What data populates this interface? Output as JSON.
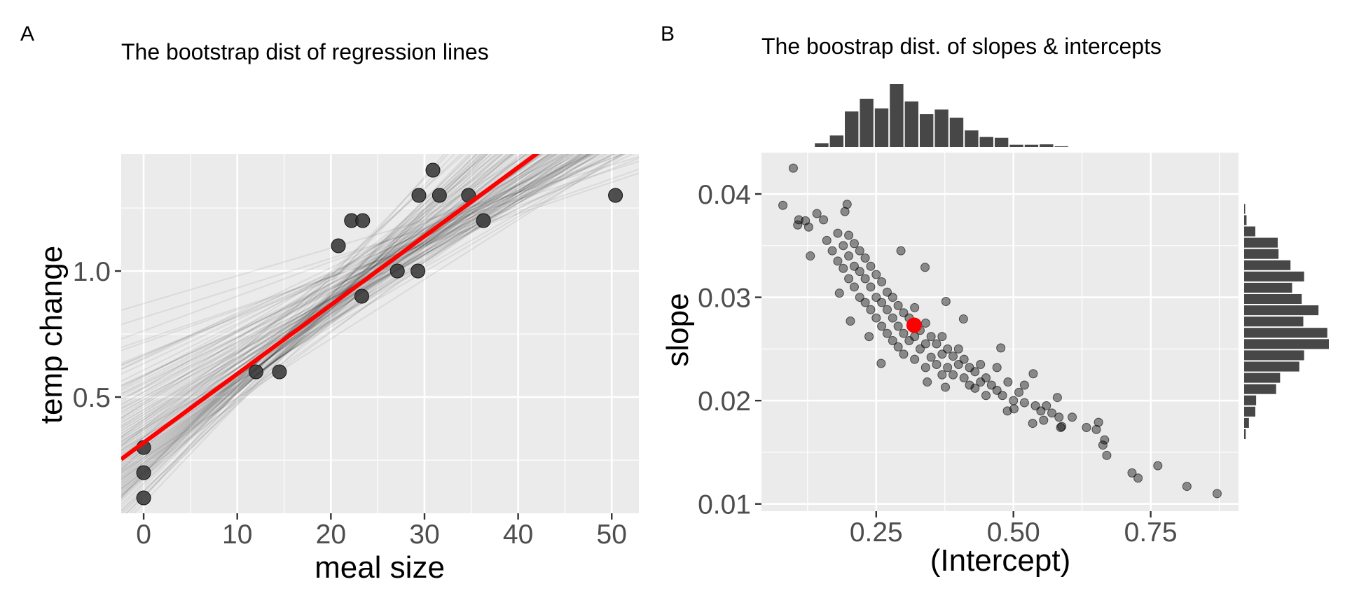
{
  "chart_data": [
    {
      "panel_tag": "A",
      "type": "scatter",
      "title": "The bootstrap dist of regression lines",
      "xlabel": "meal size",
      "ylabel": "temp change",
      "xlim": [
        -2.4,
        52.9
      ],
      "ylim": [
        0.039,
        1.464
      ],
      "xticks": [
        0,
        10,
        20,
        30,
        40,
        50
      ],
      "xtick_labels": [
        "0",
        "10",
        "20",
        "30",
        "40",
        "50"
      ],
      "yticks": [
        0.5,
        1.0
      ],
      "ytick_labels": [
        "0.5",
        "1.0"
      ],
      "grid": true,
      "points": [
        [
          0,
          0.3
        ],
        [
          0,
          0.2
        ],
        [
          0,
          0.1
        ],
        [
          12.0,
          0.6
        ],
        [
          14.5,
          0.6
        ],
        [
          20.8,
          1.1
        ],
        [
          22.2,
          1.2
        ],
        [
          23.4,
          1.2
        ],
        [
          23.3,
          0.9
        ],
        [
          27.1,
          1.0
        ],
        [
          29.3,
          1.0
        ],
        [
          29.4,
          1.3
        ],
        [
          30.9,
          1.4
        ],
        [
          31.6,
          1.3
        ],
        [
          34.7,
          1.3
        ],
        [
          36.3,
          1.2
        ],
        [
          50.4,
          1.3
        ]
      ],
      "point_color": "#333333",
      "fit_line": {
        "intercept": 0.319,
        "slope": 0.0273,
        "color": "#FF0000"
      },
      "bootstrap_lines_from": "panel B samples (intercept, slope)"
    },
    {
      "panel_tag": "B",
      "type": "scatter",
      "title": "The boostrap dist. of slopes & intercepts",
      "xlabel": "(Intercept)",
      "ylabel": "slope",
      "xlim": [
        0.041,
        0.91
      ],
      "ylim": [
        0.0093,
        0.044
      ],
      "xticks": [
        0.25,
        0.5,
        0.75
      ],
      "xtick_labels": [
        "0.25",
        "0.50",
        "0.75"
      ],
      "yticks": [
        0.01,
        0.02,
        0.03,
        0.04
      ],
      "ytick_labels": [
        "0.01",
        "0.02",
        "0.03",
        "0.04"
      ],
      "grid": true,
      "estimate": {
        "intercept": 0.319,
        "slope": 0.0273,
        "color": "#FF0000"
      },
      "samples": [
        [
          0.099,
          0.0425
        ],
        [
          0.08,
          0.0389
        ],
        [
          0.107,
          0.037
        ],
        [
          0.109,
          0.0375
        ],
        [
          0.121,
          0.0374
        ],
        [
          0.127,
          0.0368
        ],
        [
          0.142,
          0.0381
        ],
        [
          0.13,
          0.034
        ],
        [
          0.154,
          0.0375
        ],
        [
          0.197,
          0.039
        ],
        [
          0.193,
          0.0383
        ],
        [
          0.295,
          0.0345
        ],
        [
          0.339,
          0.0329
        ],
        [
          0.377,
          0.0296
        ],
        [
          0.409,
          0.0279
        ],
        [
          0.477,
          0.0251
        ],
        [
          0.536,
          0.0226
        ],
        [
          0.607,
          0.0184
        ],
        [
          0.633,
          0.0174
        ],
        [
          0.655,
          0.0179
        ],
        [
          0.651,
          0.0172
        ],
        [
          0.666,
          0.0162
        ],
        [
          0.663,
          0.0157
        ],
        [
          0.67,
          0.0147
        ],
        [
          0.716,
          0.013
        ],
        [
          0.727,
          0.0125
        ],
        [
          0.763,
          0.0137
        ],
        [
          0.816,
          0.0117
        ],
        [
          0.871,
          0.011
        ],
        [
          0.586,
          0.0174
        ],
        [
          0.588,
          0.0175
        ],
        [
          0.58,
          0.0203
        ],
        [
          0.535,
          0.0178
        ],
        [
          0.555,
          0.0181
        ],
        [
          0.583,
          0.0184
        ],
        [
          0.259,
          0.0236
        ],
        [
          0.237,
          0.0262
        ],
        [
          0.203,
          0.0277
        ],
        [
          0.183,
          0.0304
        ],
        [
          0.343,
          0.0218
        ],
        [
          0.376,
          0.0213
        ],
        [
          0.489,
          0.019
        ],
        [
          0.501,
          0.0192
        ],
        [
          0.16,
          0.0355
        ],
        [
          0.17,
          0.0345
        ],
        [
          0.18,
          0.0362
        ],
        [
          0.18,
          0.0335
        ],
        [
          0.19,
          0.035
        ],
        [
          0.19,
          0.0328
        ],
        [
          0.2,
          0.036
        ],
        [
          0.2,
          0.034
        ],
        [
          0.2,
          0.0318
        ],
        [
          0.21,
          0.0352
        ],
        [
          0.21,
          0.033
        ],
        [
          0.21,
          0.031
        ],
        [
          0.22,
          0.0345
        ],
        [
          0.22,
          0.0325
        ],
        [
          0.22,
          0.03
        ],
        [
          0.23,
          0.0338
        ],
        [
          0.23,
          0.0318
        ],
        [
          0.23,
          0.0295
        ],
        [
          0.24,
          0.033
        ],
        [
          0.24,
          0.031
        ],
        [
          0.24,
          0.0288
        ],
        [
          0.25,
          0.0322
        ],
        [
          0.25,
          0.03
        ],
        [
          0.25,
          0.028
        ],
        [
          0.26,
          0.0315
        ],
        [
          0.26,
          0.0295
        ],
        [
          0.26,
          0.0272
        ],
        [
          0.27,
          0.0305
        ],
        [
          0.27,
          0.0288
        ],
        [
          0.27,
          0.0265
        ],
        [
          0.28,
          0.03
        ],
        [
          0.28,
          0.028
        ],
        [
          0.28,
          0.0258
        ],
        [
          0.29,
          0.0292
        ],
        [
          0.29,
          0.0272
        ],
        [
          0.29,
          0.0252
        ],
        [
          0.3,
          0.0285
        ],
        [
          0.3,
          0.0265
        ],
        [
          0.3,
          0.0245
        ],
        [
          0.31,
          0.028
        ],
        [
          0.31,
          0.0258
        ],
        [
          0.32,
          0.029
        ],
        [
          0.32,
          0.0262
        ],
        [
          0.32,
          0.024
        ],
        [
          0.33,
          0.0268
        ],
        [
          0.33,
          0.025
        ],
        [
          0.34,
          0.0275
        ],
        [
          0.34,
          0.0255
        ],
        [
          0.34,
          0.0232
        ],
        [
          0.35,
          0.0262
        ],
        [
          0.35,
          0.0242
        ],
        [
          0.36,
          0.0255
        ],
        [
          0.36,
          0.0235
        ],
        [
          0.37,
          0.0262
        ],
        [
          0.37,
          0.0245
        ],
        [
          0.37,
          0.0225
        ],
        [
          0.38,
          0.025
        ],
        [
          0.38,
          0.0232
        ],
        [
          0.39,
          0.0243
        ],
        [
          0.39,
          0.0225
        ],
        [
          0.4,
          0.025
        ],
        [
          0.4,
          0.0235
        ],
        [
          0.41,
          0.024
        ],
        [
          0.41,
          0.0222
        ],
        [
          0.42,
          0.0232
        ],
        [
          0.42,
          0.0215
        ],
        [
          0.43,
          0.0228
        ],
        [
          0.43,
          0.0212
        ],
        [
          0.44,
          0.0235
        ],
        [
          0.44,
          0.0218
        ],
        [
          0.45,
          0.0222
        ],
        [
          0.45,
          0.0205
        ],
        [
          0.46,
          0.0215
        ],
        [
          0.47,
          0.0232
        ],
        [
          0.47,
          0.021
        ],
        [
          0.48,
          0.0205
        ],
        [
          0.49,
          0.0218
        ],
        [
          0.5,
          0.02
        ],
        [
          0.51,
          0.0208
        ],
        [
          0.52,
          0.0198
        ],
        [
          0.52,
          0.0215
        ],
        [
          0.54,
          0.0195
        ],
        [
          0.55,
          0.019
        ],
        [
          0.56,
          0.0195
        ],
        [
          0.57,
          0.0188
        ]
      ],
      "top_histogram": {
        "variable": "(Intercept)",
        "bin_start": 0.137,
        "bin_width": 0.0273,
        "counts": [
          10,
          30,
          92,
          125,
          100,
          163,
          118,
          85,
          97,
          76,
          43,
          26,
          24,
          6,
          6,
          7,
          2
        ]
      },
      "right_histogram": {
        "variable": "slope",
        "bin_top": 0.0391,
        "bin_width": 0.00109,
        "counts_top_to_bottom": [
          1,
          3,
          14,
          42,
          43,
          58,
          75,
          60,
          72,
          93,
          74,
          104,
          106,
          75,
          69,
          45,
          40,
          15,
          14,
          6,
          2
        ]
      },
      "bar_color": "#474747"
    }
  ]
}
